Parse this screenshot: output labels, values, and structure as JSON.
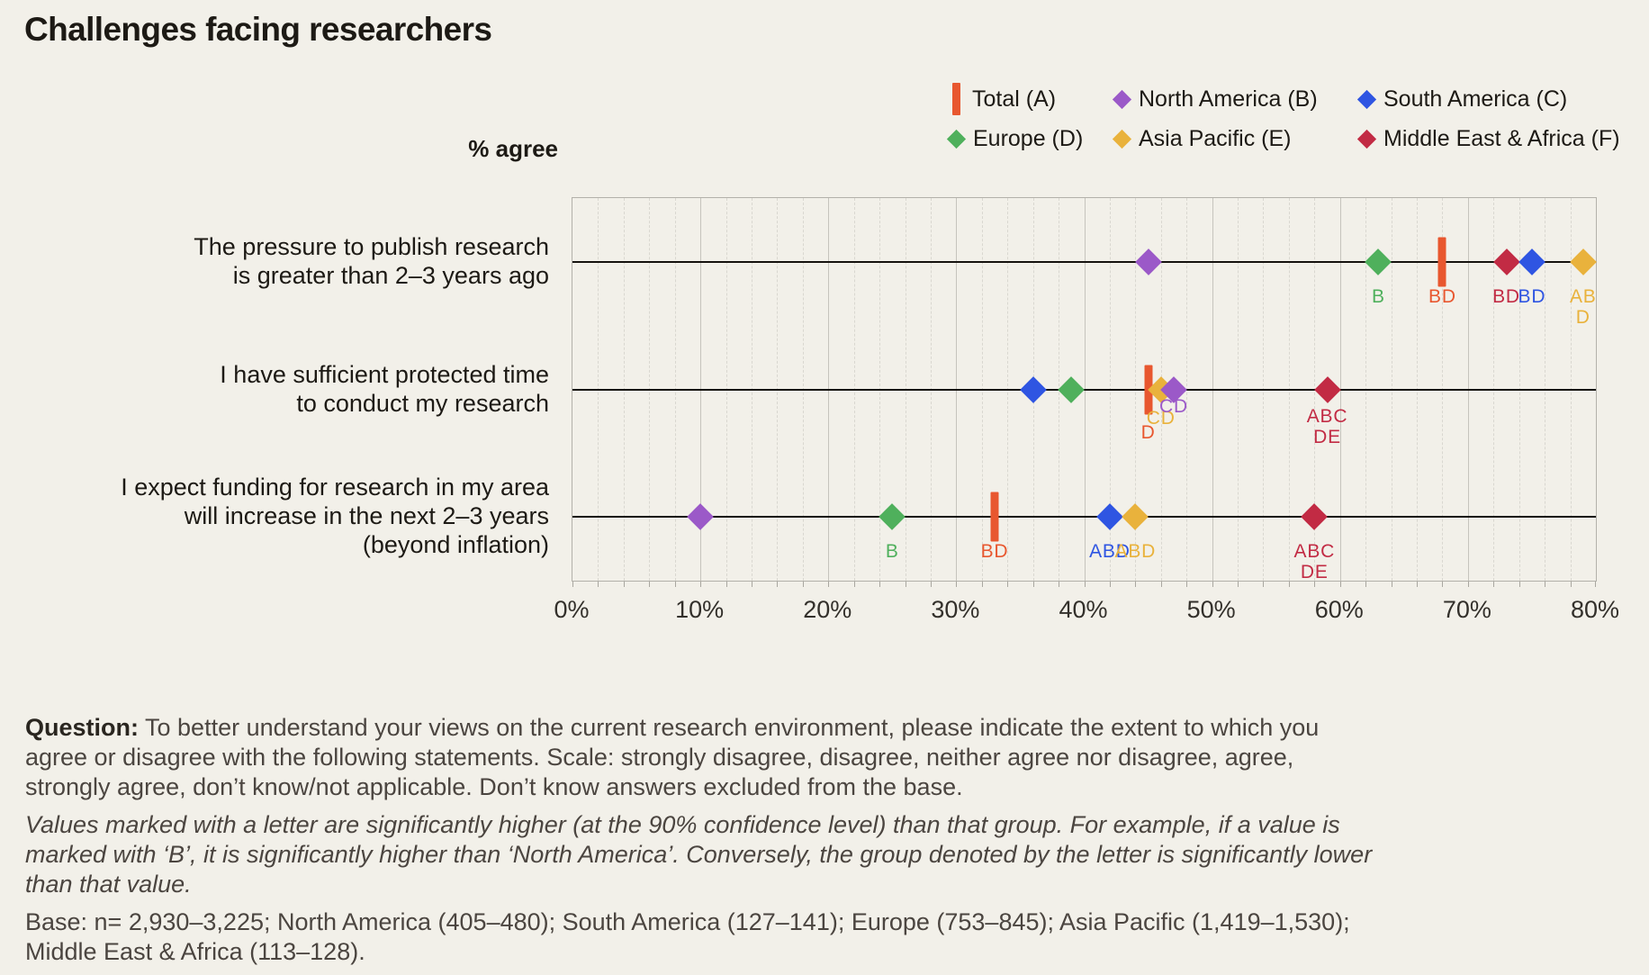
{
  "page": {
    "title": "Challenges facing researchers",
    "axis_label": "% agree"
  },
  "legend": {
    "items": [
      {
        "key": "A",
        "label": "Total (A)",
        "marker": "bar",
        "color": "#e8572f"
      },
      {
        "key": "B",
        "label": "North America (B)",
        "marker": "diamond",
        "color": "#9b59c8"
      },
      {
        "key": "C",
        "label": "South America (C)",
        "marker": "diamond",
        "color": "#2f55e2"
      },
      {
        "key": "D",
        "label": "Europe (D)",
        "marker": "diamond",
        "color": "#4fb05c"
      },
      {
        "key": "E",
        "label": "Asia Pacific (E)",
        "marker": "diamond",
        "color": "#e9b23c"
      },
      {
        "key": "F",
        "label": "Middle East & Africa (F)",
        "marker": "diamond",
        "color": "#c22b44"
      }
    ]
  },
  "chart_data": {
    "type": "scatter",
    "unit": "% agree",
    "xlim": [
      0,
      80
    ],
    "x_ticks": [
      "0%",
      "10%",
      "20%",
      "30%",
      "40%",
      "50%",
      "60%",
      "70%",
      "80%"
    ],
    "major_grid_step": 10,
    "minor_grid_step": 2,
    "grid": "on",
    "legend_position": "top-right",
    "rows": [
      {
        "statement_lines": [
          "The pressure to publish research",
          "is greater than 2–3 years ago"
        ],
        "points": [
          {
            "group": "B",
            "region": "North America",
            "value": 45,
            "sig": ""
          },
          {
            "group": "D",
            "region": "Europe",
            "value": 63,
            "sig": "B"
          },
          {
            "group": "A",
            "region": "Total",
            "value": 68,
            "sig": "BD"
          },
          {
            "group": "F",
            "region": "Middle East & Africa",
            "value": 73,
            "sig": "BD"
          },
          {
            "group": "C",
            "region": "South America",
            "value": 75,
            "sig": "BD"
          },
          {
            "group": "E",
            "region": "Asia Pacific",
            "value": 79,
            "sig": "ABD",
            "sig_lines": [
              "AB",
              "D"
            ]
          }
        ]
      },
      {
        "statement_lines": [
          "I have sufficient protected time",
          "to conduct my research"
        ],
        "points": [
          {
            "group": "C",
            "region": "South America",
            "value": 36,
            "sig": ""
          },
          {
            "group": "D",
            "region": "Europe",
            "value": 39,
            "sig": ""
          },
          {
            "group": "A",
            "region": "Total",
            "value": 45,
            "sig": "D",
            "label_dy": 36
          },
          {
            "group": "E",
            "region": "Asia Pacific",
            "value": 46,
            "sig": "CD",
            "label_dy": 20
          },
          {
            "group": "B",
            "region": "North America",
            "value": 47,
            "sig": "CD",
            "label_dy": 7
          },
          {
            "group": "F",
            "region": "Middle East & Africa",
            "value": 59,
            "sig": "ABCDE",
            "sig_lines": [
              "ABC",
              "DE"
            ],
            "label_dy": 18
          }
        ]
      },
      {
        "statement_lines": [
          "I expect funding for research in my area",
          "will increase in the next 2–3 years",
          "(beyond inflation)"
        ],
        "points": [
          {
            "group": "B",
            "region": "North America",
            "value": 10,
            "sig": ""
          },
          {
            "group": "D",
            "region": "Europe",
            "value": 25,
            "sig": "B"
          },
          {
            "group": "A",
            "region": "Total",
            "value": 33,
            "sig": "BD"
          },
          {
            "group": "C",
            "region": "South America",
            "value": 42,
            "sig": "ABD"
          },
          {
            "group": "E",
            "region": "Asia Pacific",
            "value": 44,
            "sig": "ABD"
          },
          {
            "group": "F",
            "region": "Middle East & Africa",
            "value": 58,
            "sig": "ABCDE",
            "sig_lines": [
              "ABC",
              "DE"
            ]
          }
        ]
      }
    ]
  },
  "footer": {
    "question_label": "Question:",
    "question_text": "To better understand your views on the current research environment, please indicate the extent to which you agree or disagree with the following statements. Scale: strongly disagree, disagree, neither agree nor disagree, agree, strongly agree, don’t know/not applicable. Don’t know answers excluded from the base.",
    "significance_note": "Values marked with a letter are significantly higher (at the 90% confidence level) than that group. For example, if a value is marked with ‘B’, it is significantly higher than ‘North America’. Conversely, the group denoted by the letter is significantly lower than that value.",
    "base_note": "Base: n= 2,930–3,225; North America (405–480); South America (127–141); Europe (753–845); Asia Pacific (1,419–1,530); Middle East & Africa (113–128)."
  }
}
